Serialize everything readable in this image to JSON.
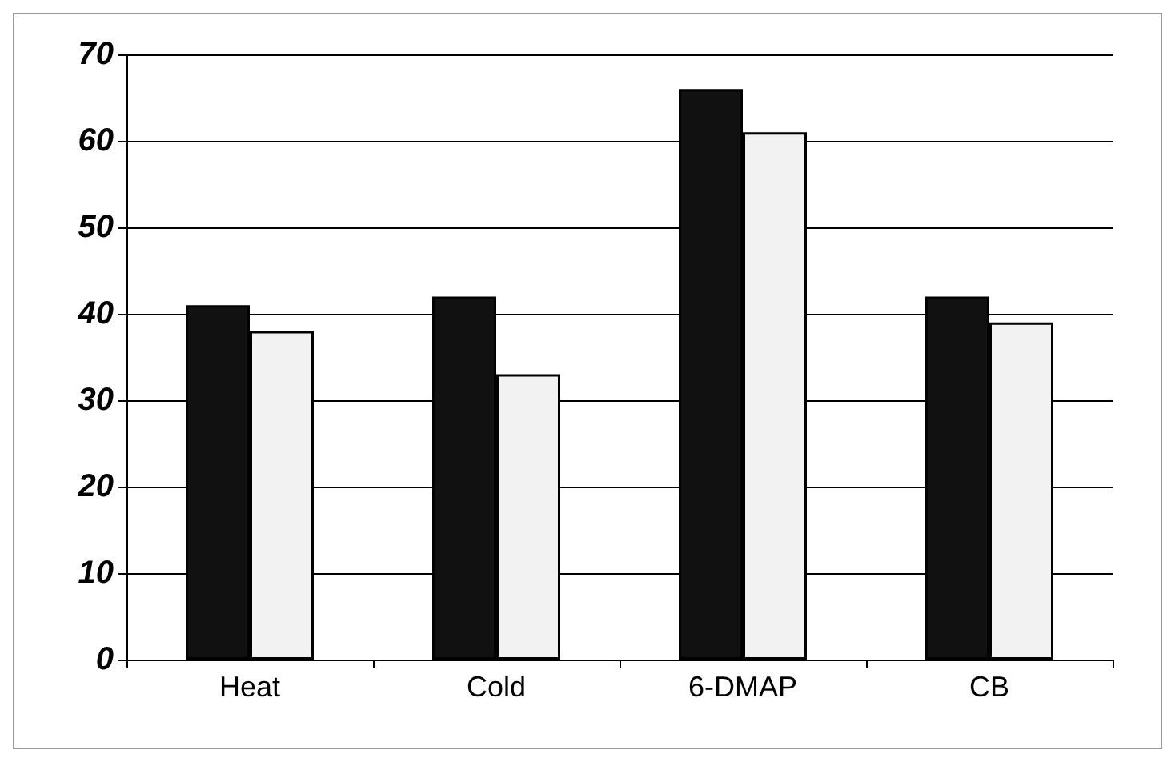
{
  "chart_data": {
    "type": "bar",
    "categories": [
      "Heat",
      "Cold",
      "6-DMAP",
      "CB"
    ],
    "series": [
      {
        "color": "#111111",
        "values": [
          41,
          42,
          66,
          42
        ]
      },
      {
        "color": "#f2f2f2",
        "values": [
          38,
          33,
          61,
          39
        ]
      }
    ],
    "ylim": [
      0,
      70
    ],
    "yticks": [
      0,
      10,
      20,
      30,
      40,
      50,
      60,
      70
    ],
    "grid": "y"
  }
}
